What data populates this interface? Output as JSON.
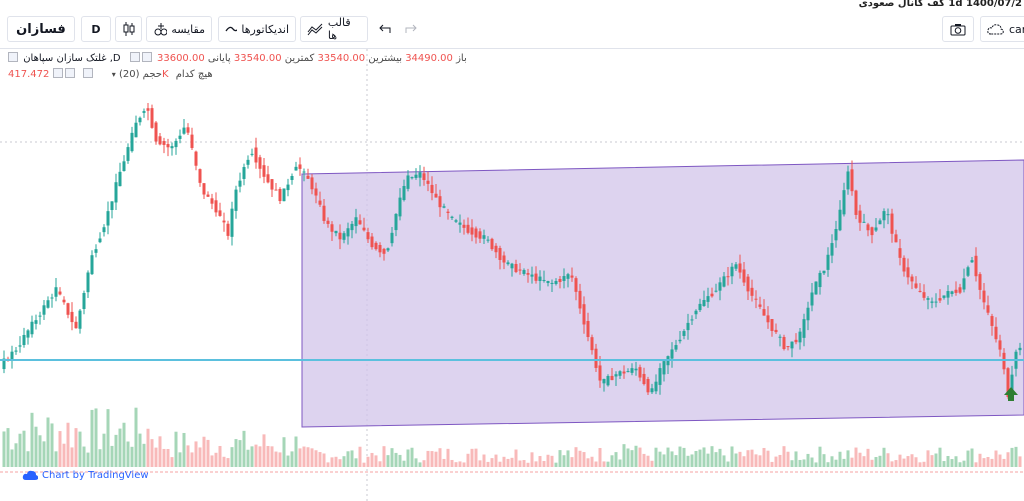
{
  "window": {
    "title": "1400/07/2 1d کف کانال صعودی"
  },
  "toolbar": {
    "symbol": "فسازان",
    "interval": "D",
    "compare_label": "مقایسه",
    "indicators_label": "اندیکاتورها",
    "templates_label": "قالب ها",
    "camera_label": "car",
    "icons": [
      "bar-type-icon",
      "compare-icon",
      "indicators-icon",
      "templates-icon",
      "undo-icon",
      "redo-icon",
      "camera-icon",
      "cloud-icon"
    ]
  },
  "legend": {
    "symbol_line": "غلتک سازان سپاهان ,D",
    "open_label": "باز",
    "open_value": "33600.00",
    "high_label": "بیشترین",
    "high_value": "34490.00",
    "low_label": "کمترین",
    "low_value": "33540.00",
    "close_label": "پایانی",
    "close_value": "33540.00",
    "volume_label": "حجم (20)",
    "volume_value": "417.472K",
    "volume_extra": "هیچ کدام"
  },
  "footer": {
    "brand": "Chart by TradingView"
  },
  "chart_data": {
    "type": "candlestick",
    "candles": [],
    "volume": [],
    "overlays": {
      "channel": "ascending-purple-channel",
      "hline": "support-line"
    },
    "marker": "up-arrow"
  },
  "colors": {
    "up": "#26a69a",
    "down": "#ef5350",
    "channel_fill": "#d1c4e9",
    "channel_border": "#7e57c2",
    "hline": "#5bc0de",
    "arrow": "#2e7d32",
    "vol_up": "#a5d6b7",
    "vol_down": "#f8b9b9"
  }
}
